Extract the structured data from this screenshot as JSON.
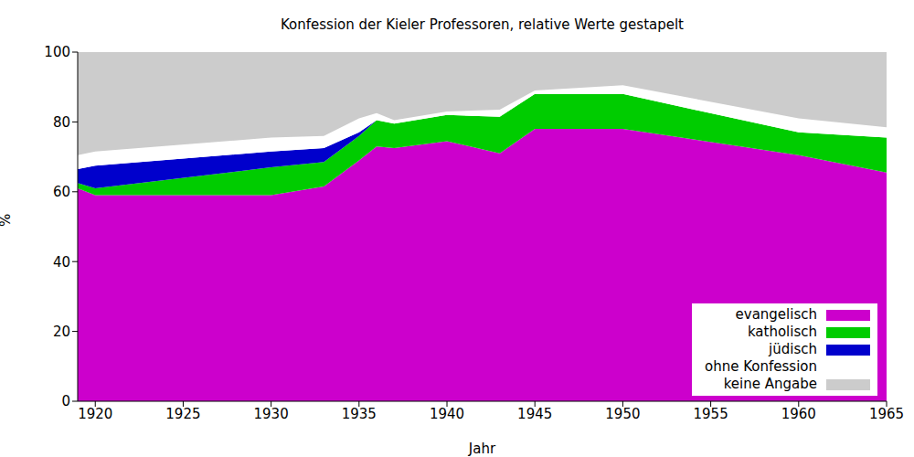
{
  "chart_data": {
    "type": "area",
    "title": "Konfession der Kieler Professoren, relative Werte gestapelt",
    "x_label": "Jahr",
    "y_label": "%",
    "x": [
      1919,
      1920,
      1930,
      1933,
      1935,
      1936,
      1937,
      1940,
      1943,
      1945,
      1950,
      1960,
      1965
    ],
    "series": [
      {
        "name": "evangelisch",
        "color": "#cc00cc",
        "values": [
          61,
          59,
          59,
          61.5,
          69,
          73,
          72.5,
          74.5,
          71,
          78,
          78,
          70.5,
          65.5
        ]
      },
      {
        "name": "katholisch",
        "color": "#00cc00",
        "values": [
          1.5,
          2,
          8,
          7,
          7,
          7.5,
          7,
          7.5,
          10.5,
          10,
          10,
          6.5,
          10
        ]
      },
      {
        "name": "jüdisch",
        "color": "#0000cc",
        "values": [
          4,
          6.5,
          4.5,
          4,
          1,
          0,
          0,
          0,
          0,
          0,
          0,
          0,
          0
        ]
      },
      {
        "name": "ohne Konfession",
        "color": "#ffffff",
        "values": [
          4,
          4,
          4,
          3.5,
          4,
          2,
          1,
          1,
          2,
          1,
          2.5,
          4,
          3
        ]
      },
      {
        "name": "keine Angabe",
        "color": "#cccccc",
        "values": [
          29.5,
          28.5,
          24.5,
          24,
          19,
          17.5,
          19.5,
          17,
          16.5,
          11,
          9.5,
          19,
          21.5
        ]
      }
    ],
    "xlim": [
      1919,
      1965
    ],
    "xticks": [
      1920,
      1925,
      1930,
      1935,
      1940,
      1945,
      1950,
      1955,
      1960,
      1965
    ],
    "ylim": [
      0,
      100
    ],
    "yticks": [
      0,
      20,
      40,
      60,
      80,
      100
    ],
    "stacked": true,
    "grid": false,
    "legend": "lower right"
  }
}
